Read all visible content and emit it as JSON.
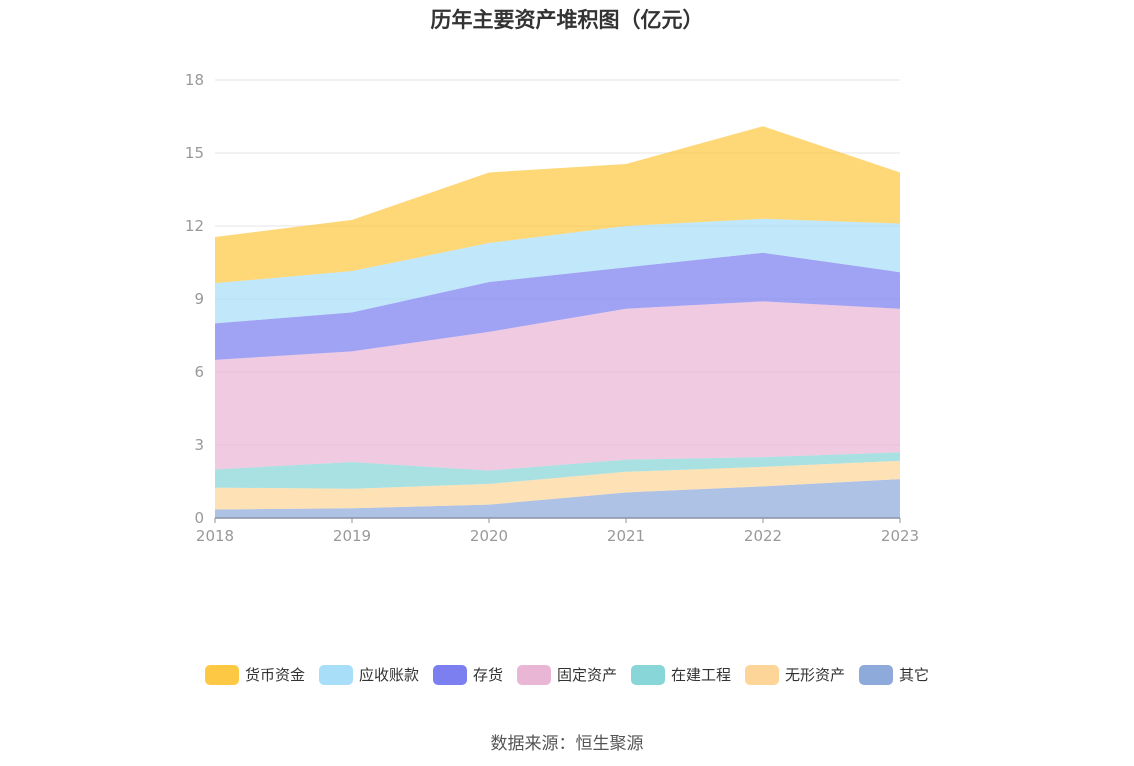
{
  "chart_data": {
    "type": "area",
    "stacked": true,
    "title": "历年主要资产堆积图（亿元）",
    "x": [
      "2018",
      "2019",
      "2020",
      "2021",
      "2022",
      "2023"
    ],
    "ylim": [
      0,
      18
    ],
    "yticks": [
      0,
      3,
      6,
      9,
      12,
      15,
      18
    ],
    "grid": true,
    "legend_position": "bottom",
    "series": [
      {
        "name": "其它",
        "color": "#8eaadb",
        "values": [
          0.35,
          0.4,
          0.55,
          1.05,
          1.3,
          1.6
        ]
      },
      {
        "name": "无形资产",
        "color": "#fdd598",
        "values": [
          0.9,
          0.8,
          0.85,
          0.85,
          0.8,
          0.75
        ]
      },
      {
        "name": "在建工程",
        "color": "#88d6d7",
        "values": [
          0.75,
          1.1,
          0.55,
          0.5,
          0.4,
          0.35
        ]
      },
      {
        "name": "固定资产",
        "color": "#e9b6d6",
        "values": [
          4.5,
          4.55,
          5.7,
          6.2,
          6.4,
          5.9
        ]
      },
      {
        "name": "存货",
        "color": "#7b7ff0",
        "values": [
          1.5,
          1.6,
          2.05,
          1.7,
          2.0,
          1.5
        ]
      },
      {
        "name": "应收账款",
        "color": "#a8def8",
        "values": [
          1.65,
          1.7,
          1.6,
          1.7,
          1.4,
          2.0
        ]
      },
      {
        "name": "货币资金",
        "color": "#fdc843",
        "values": [
          1.9,
          2.1,
          2.9,
          2.55,
          3.8,
          2.1
        ]
      }
    ],
    "legend_order": [
      "货币资金",
      "应收账款",
      "存货",
      "固定资产",
      "在建工程",
      "无形资产",
      "其它"
    ]
  },
  "source_note": "数据来源：恒生聚源"
}
